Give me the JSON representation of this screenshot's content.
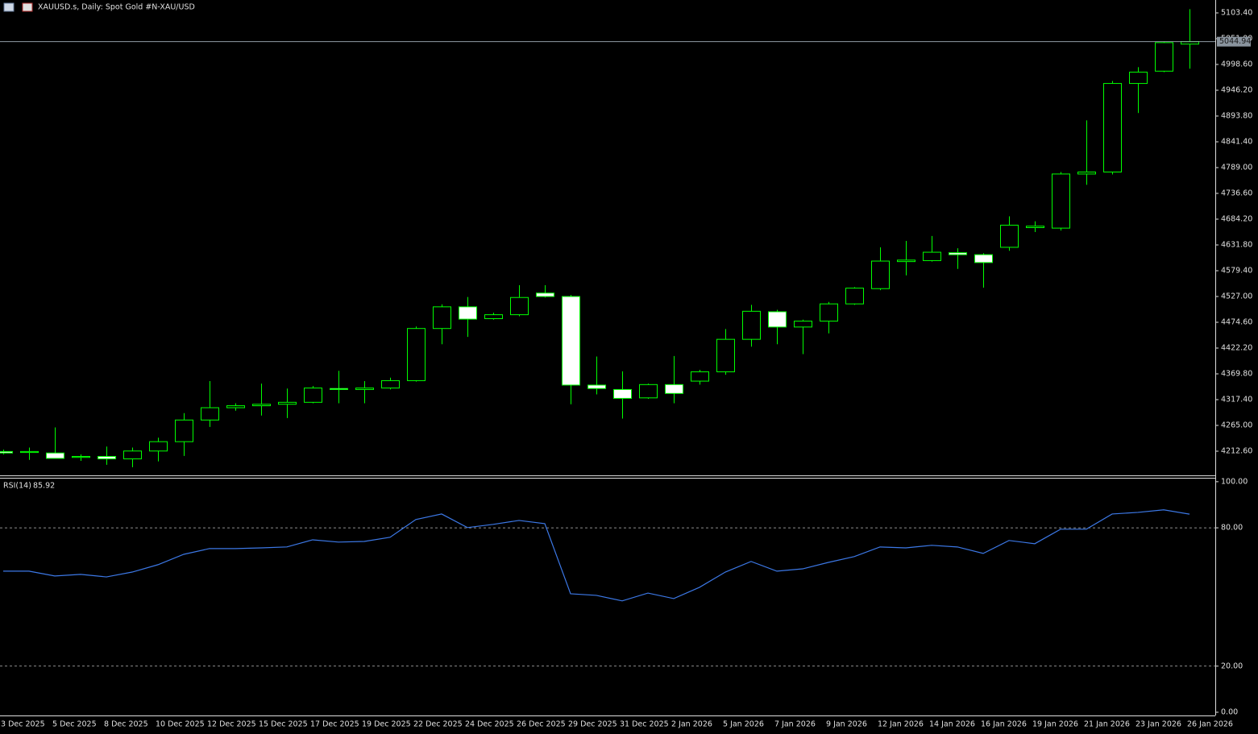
{
  "chart_data": [
    {
      "type": "candlestick",
      "title": "XAUUSD.s, Daily:  Spot Gold #N-XAU/USD",
      "categories": [
        "3 Dec 2025",
        null,
        "5 Dec 2025",
        null,
        "8 Dec 2025",
        null,
        "10 Dec 2025",
        null,
        "12 Dec 2025",
        null,
        "15 Dec 2025",
        null,
        "17 Dec 2025",
        null,
        "19 Dec 2025",
        null,
        "22 Dec 2025",
        null,
        "24 Dec 2025",
        null,
        "26 Dec 2025",
        null,
        "29 Dec 2025",
        null,
        "31 Dec 2025",
        null,
        "2 Jan 2026",
        null,
        "5 Jan 2026",
        null,
        "7 Jan 2026",
        null,
        "9 Jan 2026",
        null,
        "12 Jan 2026",
        null,
        "14 Jan 2026",
        null,
        "16 Jan 2026",
        null,
        "19 Jan 2026",
        null,
        "21 Jan 2026",
        null,
        "23 Jan 2026",
        null,
        "26 Jan 2026"
      ],
      "open": [
        4212,
        4210,
        4209,
        4200,
        4202,
        4197,
        4213,
        4232,
        4276,
        4301,
        4305,
        4308,
        4312,
        4340,
        4338,
        4341,
        4356,
        4462,
        4506,
        4482,
        4490,
        4534,
        4527,
        4347,
        4338,
        4321,
        4348,
        4355,
        4374,
        4440,
        4496,
        4465,
        4477,
        4512,
        4543,
        4598,
        4600,
        4616,
        4612,
        4627,
        4667,
        4666,
        4776,
        4780,
        4960,
        4985,
        5040
      ],
      "high": [
        4216,
        4220,
        4261,
        4206,
        4222,
        4220,
        4240,
        4290,
        4355,
        4310,
        4350,
        4340,
        4345,
        4376,
        4355,
        4362,
        4466,
        4511,
        4526,
        4494,
        4550,
        4550,
        4530,
        4405,
        4375,
        4350,
        4406,
        4378,
        4461,
        4510,
        4500,
        4480,
        4516,
        4546,
        4627,
        4640,
        4650,
        4625,
        4615,
        4690,
        4680,
        4780,
        4885,
        4965,
        4993,
        5045,
        5111
      ],
      "low": [
        4206,
        4195,
        4198,
        4193,
        4185,
        4180,
        4192,
        4203,
        4262,
        4295,
        4285,
        4280,
        4310,
        4310,
        4310,
        4338,
        4354,
        4430,
        4445,
        4480,
        4487,
        4525,
        4308,
        4328,
        4279,
        4319,
        4310,
        4348,
        4368,
        4425,
        4430,
        4410,
        4452,
        4510,
        4540,
        4570,
        4598,
        4583,
        4545,
        4620,
        4658,
        4661,
        4754,
        4775,
        4900,
        4983,
        4990
      ],
      "close": [
        4209,
        4212,
        4198,
        4202,
        4197,
        4213,
        4232,
        4276,
        4301,
        4305,
        4308,
        4312,
        4341,
        4338,
        4341,
        4356,
        4462,
        4506,
        4481,
        4490,
        4525,
        4527,
        4347,
        4340,
        4320,
        4348,
        4330,
        4374,
        4440,
        4497,
        4465,
        4477,
        4512,
        4544,
        4599,
        4601,
        4617,
        4612,
        4596,
        4672,
        4670,
        4776,
        4780,
        4960,
        4983,
        5043,
        5044.94
      ],
      "up_color": "#000000",
      "down_color": "#ffffff",
      "outline_color": "#00ff00",
      "ylim": [
        4163.5,
        5129.6
      ],
      "yticks": [
        {
          "value": 5103.4,
          "label": "5103.40"
        },
        {
          "value": 5051,
          "label": "5051.00"
        },
        {
          "value": 4998.6,
          "label": "4998.60"
        },
        {
          "value": 4946.2,
          "label": "4946.20"
        },
        {
          "value": 4893.8,
          "label": "4893.80"
        },
        {
          "value": 4841.4,
          "label": "4841.40"
        },
        {
          "value": 4789,
          "label": "4789.00"
        },
        {
          "value": 4736.6,
          "label": "4736.60"
        },
        {
          "value": 4684.2,
          "label": "4684.20"
        },
        {
          "value": 4631.8,
          "label": "4631.80"
        },
        {
          "value": 4579.4,
          "label": "4579.40"
        },
        {
          "value": 4527,
          "label": "4527.00"
        },
        {
          "value": 4474.6,
          "label": "4474.60"
        },
        {
          "value": 4422.2,
          "label": "4422.20"
        },
        {
          "value": 4369.8,
          "label": "4369.80"
        },
        {
          "value": 4317.4,
          "label": "4317.40"
        },
        {
          "value": 4265,
          "label": "4265.00"
        },
        {
          "value": 4212.6,
          "label": "4212.60"
        }
      ]
    },
    {
      "type": "line",
      "title": "RSI(14)",
      "color": "#3c78e6",
      "values": [
        61.2,
        61.2,
        59.1,
        59.8,
        58.7,
        60.8,
        64.0,
        68.5,
        71.0,
        71.0,
        71.3,
        71.7,
        74.8,
        73.8,
        74.1,
        75.9,
        83.6,
        86.0,
        80.1,
        81.5,
        83.2,
        81.8,
        51.4,
        50.7,
        48.3,
        51.7,
        49.3,
        54.2,
        60.8,
        65.4,
        61.2,
        62.2,
        65.0,
        67.5,
        71.7,
        71.3,
        72.4,
        71.7,
        68.9,
        74.5,
        73.1,
        79.4,
        79.4,
        86.0,
        86.7,
        87.8,
        85.92
      ],
      "ylim": [
        -1.4,
        101.7
      ],
      "yticks": [
        {
          "value": 100,
          "label": "100.00"
        },
        {
          "value": 80,
          "label": "80.00"
        },
        {
          "value": 20,
          "label": "20.00"
        },
        {
          "value": 0,
          "label": "0.00"
        }
      ],
      "levels": [
        80,
        20
      ]
    }
  ]
}
